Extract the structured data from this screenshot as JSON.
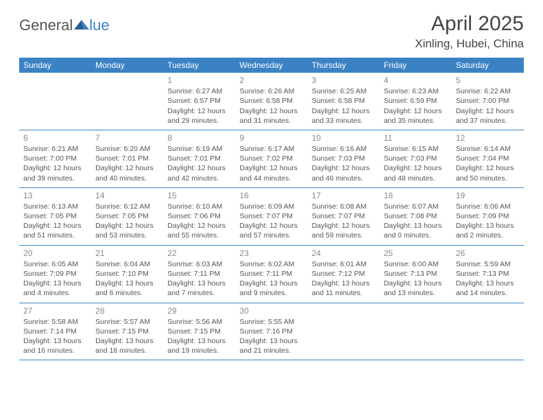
{
  "logo": {
    "general": "General",
    "blue": "lue"
  },
  "header": {
    "title": "April 2025",
    "location": "Xinling, Hubei, China"
  },
  "colors": {
    "blue_primary": "#3b82c4",
    "text_gray": "#555555",
    "bg_white": "#ffffff"
  },
  "weekdays": [
    "Sunday",
    "Monday",
    "Tuesday",
    "Wednesday",
    "Thursday",
    "Friday",
    "Saturday"
  ],
  "weeks": [
    [
      null,
      null,
      {
        "n": "1",
        "sr": "Sunrise: 6:27 AM",
        "ss": "Sunset: 6:57 PM",
        "d1": "Daylight: 12 hours",
        "d2": "and 29 minutes."
      },
      {
        "n": "2",
        "sr": "Sunrise: 6:26 AM",
        "ss": "Sunset: 6:58 PM",
        "d1": "Daylight: 12 hours",
        "d2": "and 31 minutes."
      },
      {
        "n": "3",
        "sr": "Sunrise: 6:25 AM",
        "ss": "Sunset: 6:58 PM",
        "d1": "Daylight: 12 hours",
        "d2": "and 33 minutes."
      },
      {
        "n": "4",
        "sr": "Sunrise: 6:23 AM",
        "ss": "Sunset: 6:59 PM",
        "d1": "Daylight: 12 hours",
        "d2": "and 35 minutes."
      },
      {
        "n": "5",
        "sr": "Sunrise: 6:22 AM",
        "ss": "Sunset: 7:00 PM",
        "d1": "Daylight: 12 hours",
        "d2": "and 37 minutes."
      }
    ],
    [
      {
        "n": "6",
        "sr": "Sunrise: 6:21 AM",
        "ss": "Sunset: 7:00 PM",
        "d1": "Daylight: 12 hours",
        "d2": "and 39 minutes."
      },
      {
        "n": "7",
        "sr": "Sunrise: 6:20 AM",
        "ss": "Sunset: 7:01 PM",
        "d1": "Daylight: 12 hours",
        "d2": "and 40 minutes."
      },
      {
        "n": "8",
        "sr": "Sunrise: 6:19 AM",
        "ss": "Sunset: 7:01 PM",
        "d1": "Daylight: 12 hours",
        "d2": "and 42 minutes."
      },
      {
        "n": "9",
        "sr": "Sunrise: 6:17 AM",
        "ss": "Sunset: 7:02 PM",
        "d1": "Daylight: 12 hours",
        "d2": "and 44 minutes."
      },
      {
        "n": "10",
        "sr": "Sunrise: 6:16 AM",
        "ss": "Sunset: 7:03 PM",
        "d1": "Daylight: 12 hours",
        "d2": "and 46 minutes."
      },
      {
        "n": "11",
        "sr": "Sunrise: 6:15 AM",
        "ss": "Sunset: 7:03 PM",
        "d1": "Daylight: 12 hours",
        "d2": "and 48 minutes."
      },
      {
        "n": "12",
        "sr": "Sunrise: 6:14 AM",
        "ss": "Sunset: 7:04 PM",
        "d1": "Daylight: 12 hours",
        "d2": "and 50 minutes."
      }
    ],
    [
      {
        "n": "13",
        "sr": "Sunrise: 6:13 AM",
        "ss": "Sunset: 7:05 PM",
        "d1": "Daylight: 12 hours",
        "d2": "and 51 minutes."
      },
      {
        "n": "14",
        "sr": "Sunrise: 6:12 AM",
        "ss": "Sunset: 7:05 PM",
        "d1": "Daylight: 12 hours",
        "d2": "and 53 minutes."
      },
      {
        "n": "15",
        "sr": "Sunrise: 6:10 AM",
        "ss": "Sunset: 7:06 PM",
        "d1": "Daylight: 12 hours",
        "d2": "and 55 minutes."
      },
      {
        "n": "16",
        "sr": "Sunrise: 6:09 AM",
        "ss": "Sunset: 7:07 PM",
        "d1": "Daylight: 12 hours",
        "d2": "and 57 minutes."
      },
      {
        "n": "17",
        "sr": "Sunrise: 6:08 AM",
        "ss": "Sunset: 7:07 PM",
        "d1": "Daylight: 12 hours",
        "d2": "and 59 minutes."
      },
      {
        "n": "18",
        "sr": "Sunrise: 6:07 AM",
        "ss": "Sunset: 7:08 PM",
        "d1": "Daylight: 13 hours",
        "d2": "and 0 minutes."
      },
      {
        "n": "19",
        "sr": "Sunrise: 6:06 AM",
        "ss": "Sunset: 7:09 PM",
        "d1": "Daylight: 13 hours",
        "d2": "and 2 minutes."
      }
    ],
    [
      {
        "n": "20",
        "sr": "Sunrise: 6:05 AM",
        "ss": "Sunset: 7:09 PM",
        "d1": "Daylight: 13 hours",
        "d2": "and 4 minutes."
      },
      {
        "n": "21",
        "sr": "Sunrise: 6:04 AM",
        "ss": "Sunset: 7:10 PM",
        "d1": "Daylight: 13 hours",
        "d2": "and 6 minutes."
      },
      {
        "n": "22",
        "sr": "Sunrise: 6:03 AM",
        "ss": "Sunset: 7:11 PM",
        "d1": "Daylight: 13 hours",
        "d2": "and 7 minutes."
      },
      {
        "n": "23",
        "sr": "Sunrise: 6:02 AM",
        "ss": "Sunset: 7:11 PM",
        "d1": "Daylight: 13 hours",
        "d2": "and 9 minutes."
      },
      {
        "n": "24",
        "sr": "Sunrise: 6:01 AM",
        "ss": "Sunset: 7:12 PM",
        "d1": "Daylight: 13 hours",
        "d2": "and 11 minutes."
      },
      {
        "n": "25",
        "sr": "Sunrise: 6:00 AM",
        "ss": "Sunset: 7:13 PM",
        "d1": "Daylight: 13 hours",
        "d2": "and 13 minutes."
      },
      {
        "n": "26",
        "sr": "Sunrise: 5:59 AM",
        "ss": "Sunset: 7:13 PM",
        "d1": "Daylight: 13 hours",
        "d2": "and 14 minutes."
      }
    ],
    [
      {
        "n": "27",
        "sr": "Sunrise: 5:58 AM",
        "ss": "Sunset: 7:14 PM",
        "d1": "Daylight: 13 hours",
        "d2": "and 16 minutes."
      },
      {
        "n": "28",
        "sr": "Sunrise: 5:57 AM",
        "ss": "Sunset: 7:15 PM",
        "d1": "Daylight: 13 hours",
        "d2": "and 18 minutes."
      },
      {
        "n": "29",
        "sr": "Sunrise: 5:56 AM",
        "ss": "Sunset: 7:15 PM",
        "d1": "Daylight: 13 hours",
        "d2": "and 19 minutes."
      },
      {
        "n": "30",
        "sr": "Sunrise: 5:55 AM",
        "ss": "Sunset: 7:16 PM",
        "d1": "Daylight: 13 hours",
        "d2": "and 21 minutes."
      },
      null,
      null,
      null
    ]
  ]
}
